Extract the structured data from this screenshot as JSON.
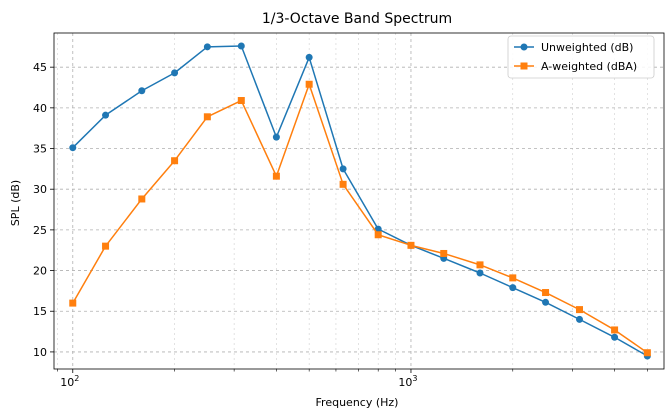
{
  "chart_data": {
    "type": "line",
    "title": "1/3-Octave Band Spectrum",
    "xlabel": "Frequency (Hz)",
    "ylabel": "SPL (dB)",
    "xscale": "log",
    "xlim": [
      88,
      5600
    ],
    "ylim": [
      7.9,
      49.2
    ],
    "yticks": [
      10,
      15,
      20,
      25,
      30,
      35,
      40,
      45
    ],
    "xticks": [
      {
        "value": 100,
        "base": "10",
        "exp": "2"
      },
      {
        "value": 1000,
        "base": "10",
        "exp": "3"
      }
    ],
    "grid": true,
    "legend_position": "top-right",
    "x": [
      100,
      125,
      160,
      200,
      250,
      315,
      400,
      500,
      630,
      800,
      1000,
      1250,
      1600,
      2000,
      2500,
      3150,
      4000,
      5000
    ],
    "series": [
      {
        "name": "Unweighted (dB)",
        "color": "#1f77b4",
        "marker": "circle",
        "values": [
          35.1,
          39.1,
          42.1,
          44.3,
          47.5,
          47.6,
          36.4,
          46.2,
          32.5,
          25.1,
          23.1,
          21.5,
          19.7,
          17.9,
          16.1,
          14.0,
          11.8,
          9.5
        ]
      },
      {
        "name": "A-weighted (dBA)",
        "color": "#ff7f0e",
        "marker": "square",
        "values": [
          16.0,
          23.0,
          28.8,
          33.5,
          38.9,
          40.9,
          31.6,
          42.9,
          30.6,
          24.4,
          23.1,
          22.1,
          20.7,
          19.1,
          17.3,
          15.2,
          12.7,
          9.9
        ]
      }
    ]
  }
}
